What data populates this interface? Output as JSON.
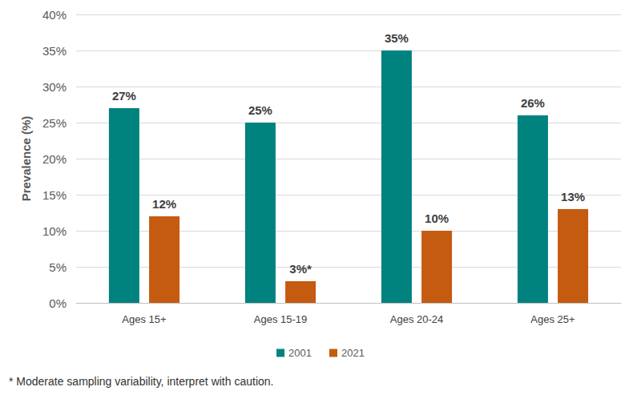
{
  "chart_data": {
    "type": "bar",
    "y_label": "Prevalence (%)",
    "categories": [
      "Ages 15+",
      "Ages 15-19",
      "Ages 20-24",
      "Ages 25+"
    ],
    "series": [
      {
        "name": "2001",
        "color": "#00827f",
        "values": [
          27,
          25,
          35,
          26
        ],
        "value_labels": [
          "27%",
          "25%",
          "35%",
          "26%"
        ]
      },
      {
        "name": "2021",
        "color": "#c55a11",
        "values": [
          12,
          3,
          10,
          13
        ],
        "value_labels": [
          "12%",
          "3%*",
          "10%",
          "13%"
        ]
      }
    ],
    "ylim": [
      0,
      40
    ],
    "yticks": [
      {
        "value": 0,
        "label": "0%"
      },
      {
        "value": 5,
        "label": "5%"
      },
      {
        "value": 10,
        "label": "10%"
      },
      {
        "value": 15,
        "label": "15%"
      },
      {
        "value": 20,
        "label": "20%"
      },
      {
        "value": 25,
        "label": "25%"
      },
      {
        "value": 30,
        "label": "30%"
      },
      {
        "value": 35,
        "label": "35%"
      },
      {
        "value": 40,
        "label": "40%"
      }
    ],
    "grid": true,
    "legend": "bottom",
    "data_labels": true,
    "footnote": "* Moderate sampling variability, interpret with caution."
  }
}
